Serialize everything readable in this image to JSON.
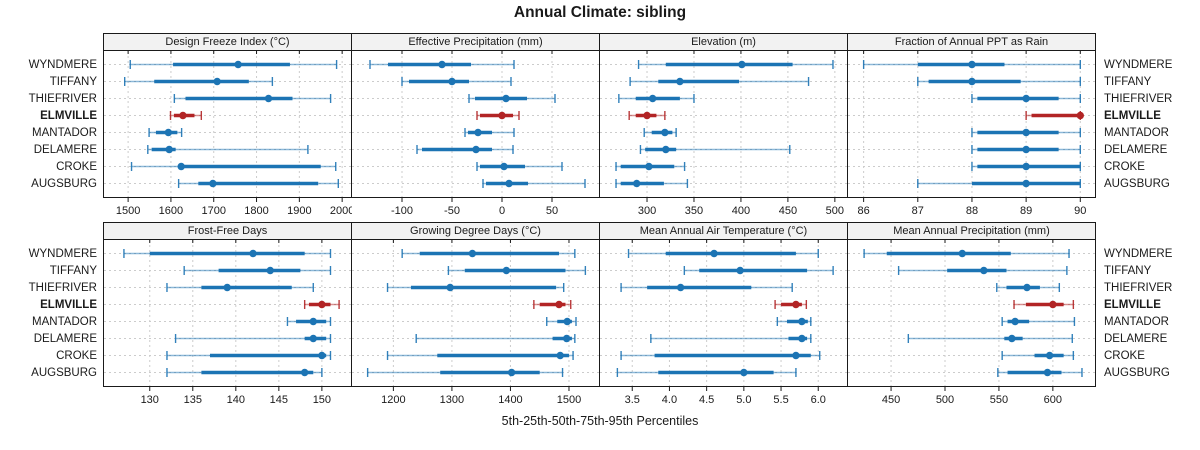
{
  "chart_data": {
    "type": "scatter",
    "style": "percentile-dot-whisker-trellis",
    "title": "Annual Climate: sibling",
    "xlabel": "5th-25th-50th-75th-95th Percentiles",
    "percentiles": [
      5,
      25,
      50,
      75,
      95
    ],
    "stations": [
      "WYNDMERE",
      "TIFFANY",
      "THIEFRIVER",
      "ELMVILLE",
      "MANTADOR",
      "DELAMERE",
      "CROKE",
      "AUGSBURG"
    ],
    "highlight_station": "ELMVILLE",
    "layout": {
      "rows": 2,
      "cols": 4,
      "grid": "dashed",
      "legend": "none"
    },
    "colors": {
      "series_blue": "#1c74b4",
      "highlight_red": "#b22425",
      "grid": "#cccccc",
      "panel_border": "#1a1a1a",
      "header_bg": "#f2f2f2",
      "text": "#1a1a1a"
    },
    "panels": [
      {
        "label": "Design Freeze Index (°C)",
        "xlim": [
          1446,
          2023
        ],
        "ticks": [
          1500,
          1600,
          1700,
          1800,
          1900,
          2000
        ],
        "tick_labels": [
          "1500",
          "1600",
          "1700",
          "1800",
          "1900",
          "2000"
        ],
        "values": {
          "WYNDMERE": [
            1505,
            1605,
            1757,
            1878,
            1987
          ],
          "TIFFANY": [
            1492,
            1561,
            1708,
            1782,
            1837
          ],
          "THIEFRIVER": [
            1608,
            1634,
            1828,
            1884,
            1973
          ],
          "ELMVILLE": [
            1599,
            1607,
            1628,
            1655,
            1671
          ],
          "MANTADOR": [
            1549,
            1565,
            1594,
            1615,
            1625
          ],
          "DELAMERE": [
            1546,
            1555,
            1596,
            1611,
            1920
          ],
          "CROKE": [
            1508,
            1617,
            1624,
            1950,
            1985
          ],
          "AUGSBURG": [
            1618,
            1664,
            1698,
            1944,
            1991
          ]
        }
      },
      {
        "label": "Effective Precipitation (mm)",
        "xlim": [
          -149,
          98
        ],
        "ticks": [
          -100,
          -50,
          0,
          50
        ],
        "tick_labels": [
          "-100",
          "-50",
          "0",
          "50"
        ],
        "values": {
          "WYNDMERE": [
            -132,
            -114,
            -60,
            -31,
            12
          ],
          "TIFFANY": [
            -100,
            -93,
            -50,
            -33,
            9
          ],
          "THIEFRIVER": [
            -33,
            -27,
            4,
            25,
            53
          ],
          "ELMVILLE": [
            -25,
            -22,
            0,
            11,
            17
          ],
          "MANTADOR": [
            -37,
            -34,
            -24,
            -10,
            12
          ],
          "DELAMERE": [
            -85,
            -80,
            -26,
            -10,
            11
          ],
          "CROKE": [
            -25,
            -22,
            2,
            23,
            60
          ],
          "AUGSBURG": [
            -19,
            -16,
            7,
            26,
            83
          ]
        }
      },
      {
        "label": "Elevation (m)",
        "xlim": [
          251,
          514
        ],
        "ticks": [
          300,
          350,
          400,
          450,
          500
        ],
        "tick_labels": [
          "300",
          "350",
          "400",
          "450",
          "500"
        ],
        "values": {
          "WYNDMERE": [
            291,
            320,
            401,
            455,
            498
          ],
          "TIFFANY": [
            282,
            312,
            335,
            398,
            472
          ],
          "THIEFRIVER": [
            270,
            288,
            306,
            335,
            350
          ],
          "ELMVILLE": [
            281,
            288,
            300,
            310,
            319
          ],
          "MANTADOR": [
            297,
            305,
            319,
            327,
            331
          ],
          "DELAMERE": [
            293,
            298,
            320,
            331,
            452
          ],
          "CROKE": [
            267,
            272,
            302,
            329,
            340
          ],
          "AUGSBURG": [
            267,
            272,
            289,
            318,
            343
          ]
        }
      },
      {
        "label": "Fraction of Annual PPT as Rain",
        "xlim": [
          85.73,
          90.29
        ],
        "ticks": [
          86,
          87,
          88,
          89,
          90
        ],
        "tick_labels": [
          "86",
          "87",
          "88",
          "89",
          "90"
        ],
        "values": {
          "WYNDMERE": [
            86,
            87,
            88,
            88.6,
            90
          ],
          "TIFFANY": [
            87,
            87.2,
            88,
            88.9,
            90
          ],
          "THIEFRIVER": [
            88,
            88.1,
            89,
            89.6,
            90
          ],
          "ELMVILLE": [
            89,
            89.1,
            90,
            90,
            90
          ],
          "MANTADOR": [
            88,
            88.1,
            89,
            89.6,
            90
          ],
          "DELAMERE": [
            88,
            88.1,
            89,
            89.6,
            90
          ],
          "CROKE": [
            88,
            88.1,
            89,
            90,
            90
          ],
          "AUGSBURG": [
            87,
            88,
            89,
            90,
            90
          ]
        }
      },
      {
        "label": "Frost-Free Days",
        "xlim": [
          124.8,
          153.5
        ],
        "ticks": [
          130,
          135,
          140,
          145,
          150
        ],
        "tick_labels": [
          "130",
          "135",
          "140",
          "145",
          "150"
        ],
        "values": {
          "WYNDMERE": [
            127,
            130,
            142,
            148,
            151
          ],
          "TIFFANY": [
            134,
            138,
            144,
            147.5,
            151
          ],
          "THIEFRIVER": [
            132,
            136,
            139,
            146.5,
            149
          ],
          "ELMVILLE": [
            148,
            148.5,
            150,
            151,
            152
          ],
          "MANTADOR": [
            146,
            147,
            149,
            150.5,
            151
          ],
          "DELAMERE": [
            133,
            148,
            149,
            150.5,
            151
          ],
          "CROKE": [
            132,
            137,
            150,
            150.5,
            151
          ],
          "AUGSBURG": [
            132,
            136,
            148,
            149,
            150
          ]
        }
      },
      {
        "label": "Growing Degree Days (°C)",
        "xlim": [
          1131,
          1553
        ],
        "ticks": [
          1200,
          1300,
          1400,
          1500
        ],
        "tick_labels": [
          "1200",
          "1300",
          "1400",
          "1500"
        ],
        "values": {
          "WYNDMERE": [
            1215,
            1245,
            1335,
            1483,
            1510
          ],
          "TIFFANY": [
            1294,
            1322,
            1393,
            1494,
            1528
          ],
          "THIEFRIVER": [
            1190,
            1230,
            1297,
            1478,
            1491
          ],
          "ELMVILLE": [
            1440,
            1450,
            1483,
            1494,
            1503
          ],
          "MANTADOR": [
            1462,
            1480,
            1497,
            1505,
            1512
          ],
          "DELAMERE": [
            1239,
            1472,
            1496,
            1505,
            1510
          ],
          "CROKE": [
            1190,
            1275,
            1485,
            1500,
            1507
          ],
          "AUGSBURG": [
            1156,
            1280,
            1402,
            1450,
            1489
          ]
        }
      },
      {
        "label": "Mean Annual Air Temperature (°C)",
        "xlim": [
          3.08,
          6.4
        ],
        "ticks": [
          3.5,
          4.0,
          4.5,
          5.0,
          5.5,
          6.0
        ],
        "tick_labels": [
          "3.5",
          "4.0",
          "4.5",
          "5.0",
          "5.5",
          "6.0"
        ],
        "values": {
          "WYNDMERE": [
            3.45,
            3.95,
            4.6,
            5.7,
            6.0
          ],
          "TIFFANY": [
            4.2,
            4.4,
            4.95,
            5.85,
            6.2
          ],
          "THIEFRIVER": [
            3.35,
            3.7,
            4.15,
            5.1,
            5.65
          ],
          "ELMVILLE": [
            5.42,
            5.5,
            5.7,
            5.78,
            5.84
          ],
          "MANTADOR": [
            5.45,
            5.58,
            5.78,
            5.86,
            5.9
          ],
          "DELAMERE": [
            3.75,
            5.6,
            5.78,
            5.85,
            5.9
          ],
          "CROKE": [
            3.35,
            3.8,
            5.7,
            5.9,
            6.02
          ],
          "AUGSBURG": [
            3.3,
            3.85,
            5.0,
            5.4,
            5.7
          ]
        }
      },
      {
        "label": "Mean Annual Precipitation (mm)",
        "xlim": [
          411,
          640
        ],
        "ticks": [
          450,
          500,
          550,
          600
        ],
        "tick_labels": [
          "450",
          "500",
          "550",
          "600"
        ],
        "values": {
          "WYNDMERE": [
            425,
            446,
            516,
            561,
            615
          ],
          "TIFFANY": [
            457,
            502,
            536,
            557,
            613
          ],
          "THIEFRIVER": [
            548,
            557,
            576,
            588,
            606
          ],
          "ELMVILLE": [
            564,
            575,
            600,
            610,
            619
          ],
          "MANTADOR": [
            553,
            558,
            565,
            578,
            620
          ],
          "DELAMERE": [
            466,
            555,
            562,
            572,
            618
          ],
          "CROKE": [
            553,
            583,
            597,
            610,
            619
          ],
          "AUGSBURG": [
            549,
            558,
            595,
            608,
            627
          ]
        }
      }
    ]
  }
}
